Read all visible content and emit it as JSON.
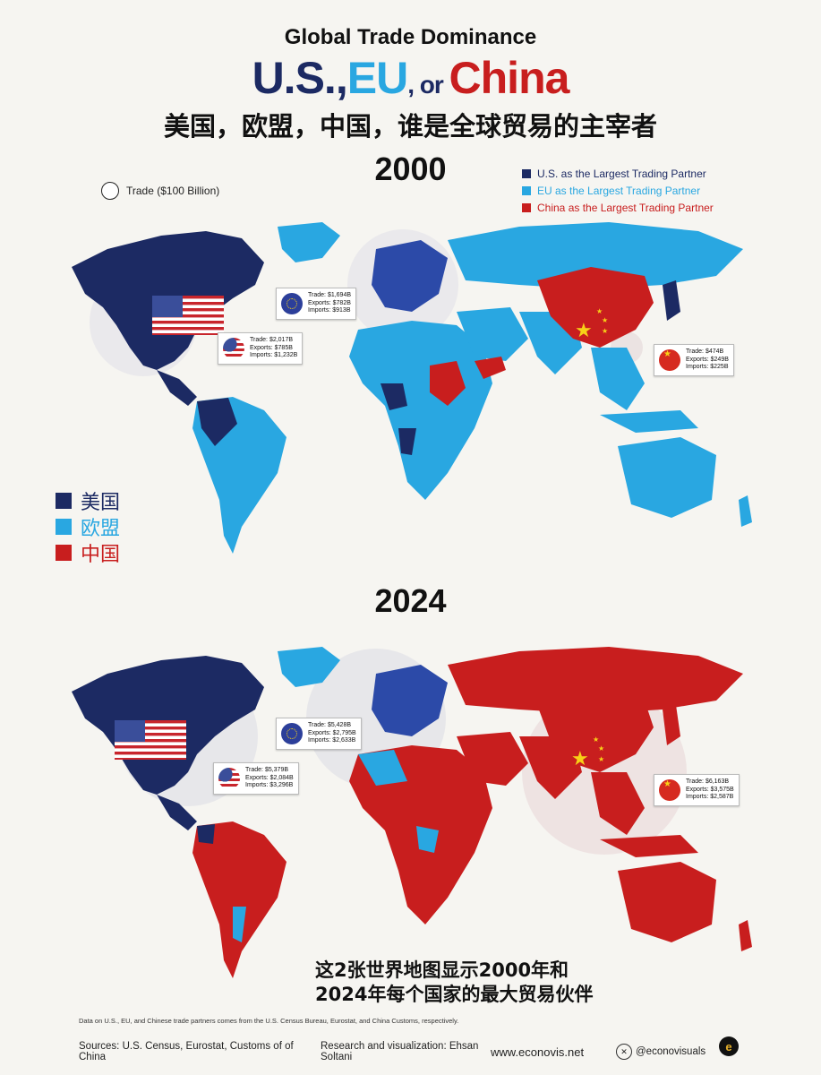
{
  "header": {
    "title": "Global Trade Dominance",
    "us": "U.S.",
    "comma1": ",",
    "eu": "EU",
    "comma2": ",",
    "or": " or ",
    "china": "China",
    "subtitle_cn": "美国，欧盟，中国，谁是全球贸易的主宰者"
  },
  "legend": {
    "trade_key": "Trade ($100 Billion)",
    "items": [
      {
        "label": "U.S. as the Largest Trading Partner",
        "color": "#1c2a63"
      },
      {
        "label": "EU as the Largest Trading Partner",
        "color": "#29a7e1"
      },
      {
        "label": "China as the Largest Trading Partner",
        "color": "#c81e1e"
      }
    ],
    "cn_items": [
      {
        "label": "美国",
        "color": "#1c2a63"
      },
      {
        "label": "欧盟",
        "color": "#29a7e1"
      },
      {
        "label": "中国",
        "color": "#c81e1e"
      }
    ]
  },
  "maps": [
    {
      "year": "2000",
      "callouts": [
        {
          "flag": "us",
          "trade": "Trade:",
          "trade_v": "$2,017B",
          "exports": "Exports:",
          "exports_v": "$785B",
          "imports": "Imports:",
          "imports_v": "$1,232B"
        },
        {
          "flag": "eu",
          "trade": "Trade:",
          "trade_v": "$1,694B",
          "exports": "Exports:",
          "exports_v": "$782B",
          "imports": "Imports:",
          "imports_v": "$913B"
        },
        {
          "flag": "cn",
          "trade": "Trade:",
          "trade_v": "$474B",
          "exports": "Exports:",
          "exports_v": "$249B",
          "imports": "Imports:",
          "imports_v": "$225B"
        }
      ]
    },
    {
      "year": "2024",
      "callouts": [
        {
          "flag": "us",
          "trade": "Trade:",
          "trade_v": "$5,379B",
          "exports": "Exports:",
          "exports_v": "$2,084B",
          "imports": "Imports:",
          "imports_v": "$3,296B"
        },
        {
          "flag": "eu",
          "trade": "Trade:",
          "trade_v": "$5,428B",
          "exports": "Exports:",
          "exports_v": "$2,795B",
          "imports": "Imports:",
          "imports_v": "$2,633B"
        },
        {
          "flag": "cn",
          "trade": "Trade:",
          "trade_v": "$6,163B",
          "exports": "Exports:",
          "exports_v": "$3,575B",
          "imports": "Imports:",
          "imports_v": "$2,587B"
        }
      ]
    }
  ],
  "caption_cn": [
    "这2张世界地图显示2000年和",
    "2024年每个国家的最大贸易伙伴"
  ],
  "footer": {
    "note": "Data on U.S., EU, and Chinese trade partners comes from the U.S. Census Bureau, Eurostat, and China Customs, respectively.",
    "sources": "Sources: U.S. Census, Eurostat, Customs of of China",
    "research": "Research and visualization: Ehsan Soltani",
    "website": "www.econovis.net",
    "handle": "@econovisuals"
  },
  "colors": {
    "us": "#1c2a63",
    "eu": "#29a7e1",
    "china": "#c81e1e",
    "background": "#f6f5f1"
  }
}
